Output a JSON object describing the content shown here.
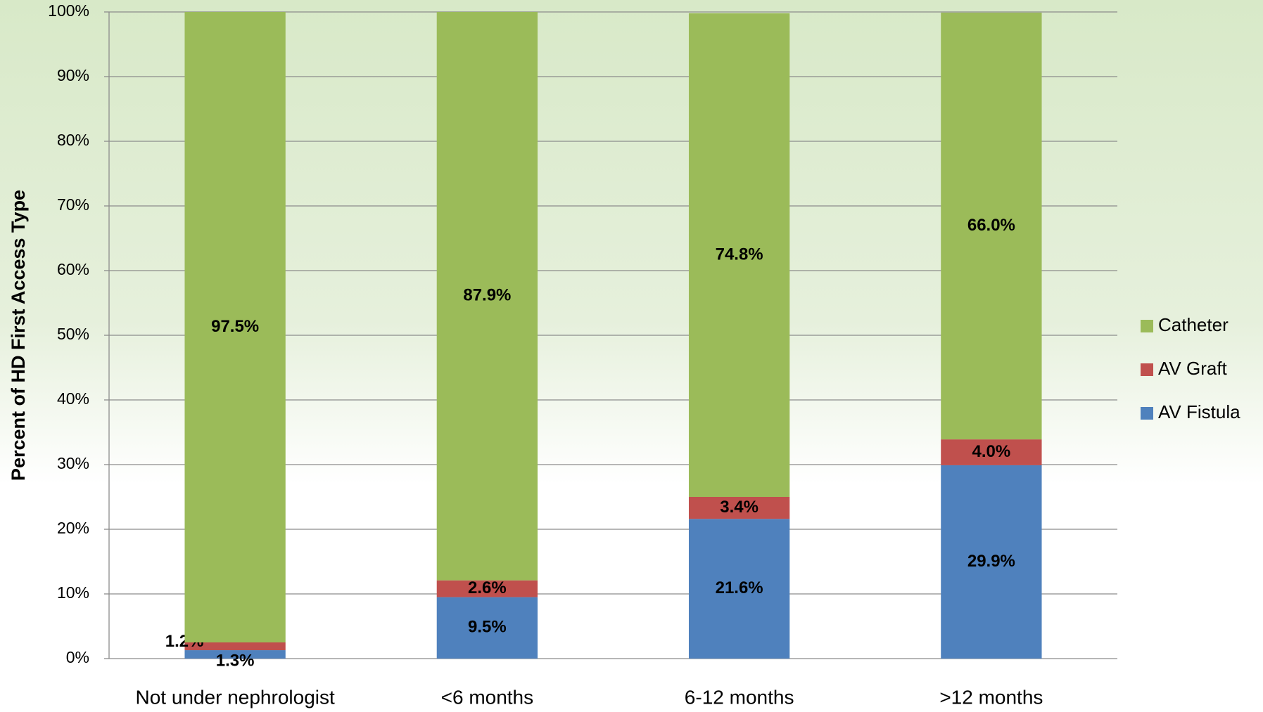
{
  "chart_data": {
    "type": "stacked_bar",
    "y_label": "Percent of HD First Access Type",
    "categories": [
      "Not under nephrologist",
      "<6 months",
      "6-12 months",
      ">12 months"
    ],
    "series": [
      {
        "name": "AV Fistula",
        "color": "#4f81bd",
        "values": [
          1.3,
          9.5,
          21.6,
          29.9
        ],
        "value_labels": [
          "1.3%",
          "9.5%",
          "21.6%",
          "29.9%"
        ]
      },
      {
        "name": "AV Graft",
        "color": "#c0504d",
        "values": [
          1.2,
          2.6,
          3.4,
          4.0
        ],
        "value_labels": [
          "1.2%",
          "2.6%",
          "3.4%",
          "4.0%"
        ]
      },
      {
        "name": "Catheter",
        "color": "#9bbb59",
        "values": [
          97.5,
          87.9,
          74.8,
          66.0
        ],
        "value_labels": [
          "97.5%",
          "87.9%",
          "74.8%",
          "66.0%"
        ]
      }
    ],
    "ylim": [
      0,
      100
    ],
    "yticks": [
      {
        "value": 0,
        "label": "0%"
      },
      {
        "value": 10,
        "label": "10%"
      },
      {
        "value": 20,
        "label": "20%"
      },
      {
        "value": 30,
        "label": "30%"
      },
      {
        "value": 40,
        "label": "40%"
      },
      {
        "value": 50,
        "label": "50%"
      },
      {
        "value": 60,
        "label": "60%"
      },
      {
        "value": 70,
        "label": "70%"
      },
      {
        "value": 80,
        "label": "80%"
      },
      {
        "value": 90,
        "label": "90%"
      },
      {
        "value": 100,
        "label": "100%"
      }
    ],
    "grid": true,
    "legend": "right"
  }
}
